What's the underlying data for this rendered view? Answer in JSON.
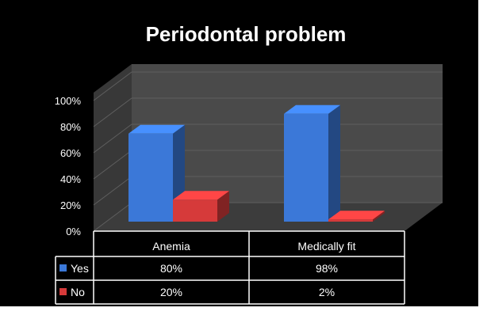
{
  "colors": {
    "background": "#000000",
    "wall": "#4a4a4a",
    "floor": "#3c3c3c",
    "yes": "#3b78d8",
    "no": "#d63a3a",
    "text": "#ffffff"
  },
  "chart_data": {
    "type": "bar",
    "title": "Periodontal problem",
    "categories": [
      "Anemia",
      "Medically fit"
    ],
    "series": [
      {
        "name": "Yes",
        "values": [
          80,
          98
        ],
        "labels": [
          "80%",
          "98%"
        ]
      },
      {
        "name": "No",
        "values": [
          20,
          2
        ],
        "labels": [
          "20%",
          "2%"
        ]
      }
    ],
    "ylim": [
      0,
      100
    ],
    "yticks": [
      "0%",
      "20%",
      "40%",
      "60%",
      "80%",
      "100%"
    ],
    "legend_placement": "data-table-left",
    "style": "3d-column"
  }
}
